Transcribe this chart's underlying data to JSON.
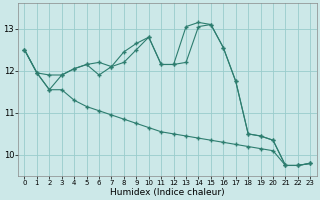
{
  "xlabel": "Humidex (Indice chaleur)",
  "bg_color": "#cce8e8",
  "grid_color": "#99cccc",
  "line_color": "#2d7d6f",
  "xlim": [
    -0.5,
    23.5
  ],
  "ylim": [
    9.5,
    13.6
  ],
  "yticks": [
    10,
    11,
    12,
    13
  ],
  "xticks": [
    0,
    1,
    2,
    3,
    4,
    5,
    6,
    7,
    8,
    9,
    10,
    11,
    12,
    13,
    14,
    15,
    16,
    17,
    18,
    19,
    20,
    21,
    22,
    23
  ],
  "line_straight": [
    12.5,
    11.95,
    11.55,
    11.55,
    11.3,
    11.15,
    11.05,
    10.95,
    10.85,
    10.75,
    10.65,
    10.55,
    10.5,
    10.45,
    10.4,
    10.35,
    10.3,
    10.25,
    10.2,
    10.15,
    10.1,
    9.75,
    9.75,
    9.8
  ],
  "line_mid": [
    12.5,
    11.95,
    11.55,
    11.9,
    12.05,
    12.15,
    11.9,
    12.1,
    12.2,
    12.5,
    12.8,
    12.15,
    12.15,
    12.2,
    13.05,
    13.1,
    12.55,
    11.75,
    10.5,
    10.45,
    10.35,
    9.75,
    9.75,
    9.8
  ],
  "line_top": [
    12.5,
    11.95,
    11.9,
    11.9,
    12.05,
    12.15,
    12.2,
    12.1,
    12.45,
    12.65,
    12.8,
    12.15,
    12.15,
    13.05,
    13.15,
    13.1,
    12.55,
    11.75,
    10.5,
    10.45,
    10.35,
    9.75,
    9.75,
    9.8
  ]
}
